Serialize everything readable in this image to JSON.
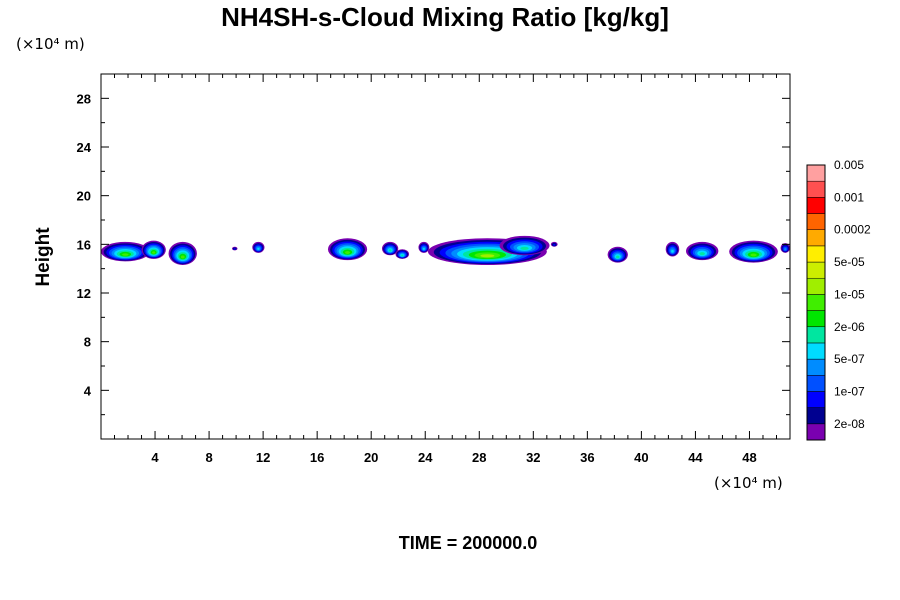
{
  "chart_data": {
    "type": "heatmap",
    "title": "NH4SH-s-Cloud Mixing Ratio [kg/kg]",
    "xlabel": "",
    "ylabel": "Height",
    "x_unit": "(×10⁴ m)",
    "y_unit": "(×10⁴ m)",
    "xlim": [
      0,
      51
    ],
    "ylim": [
      0,
      30
    ],
    "x_ticks": [
      4,
      8,
      12,
      16,
      20,
      24,
      28,
      32,
      36,
      40,
      44,
      48
    ],
    "y_ticks": [
      4,
      8,
      12,
      16,
      20,
      24,
      28
    ],
    "x_minor_step": 1,
    "y_minor_step": 2,
    "colorbar": {
      "colors": [
        "#7a00b0",
        "#000090",
        "#0000ff",
        "#0050ff",
        "#008cff",
        "#00dcff",
        "#00e6a0",
        "#00e600",
        "#40ee00",
        "#a0ee00",
        "#ccee00",
        "#ffee00",
        "#ffaa00",
        "#ff6400",
        "#ff0000",
        "#ff5050",
        "#ffa0a0"
      ],
      "labels": [
        "2e-08",
        "1e-07",
        "5e-07",
        "2e-06",
        "1e-05",
        "5e-05",
        "0.0002",
        "0.001",
        "0.005"
      ]
    },
    "cloud_blobs": [
      {
        "x0": 0.0,
        "x1": 3.6,
        "ybase": 14.6,
        "ytop": 16.2,
        "peak_level": 8
      },
      {
        "x0": 3.0,
        "x1": 4.8,
        "ybase": 14.8,
        "ytop": 16.3,
        "peak_level": 8
      },
      {
        "x0": 5.0,
        "x1": 7.1,
        "ybase": 14.3,
        "ytop": 16.2,
        "peak_level": 8
      },
      {
        "x0": 9.7,
        "x1": 10.1,
        "ybase": 15.5,
        "ytop": 15.8,
        "peak_level": 2
      },
      {
        "x0": 11.2,
        "x1": 12.1,
        "ybase": 15.3,
        "ytop": 16.2,
        "peak_level": 5
      },
      {
        "x0": 16.8,
        "x1": 19.7,
        "ybase": 14.7,
        "ytop": 16.5,
        "peak_level": 8
      },
      {
        "x0": 20.8,
        "x1": 22.0,
        "ybase": 15.1,
        "ytop": 16.2,
        "peak_level": 6
      },
      {
        "x0": 21.8,
        "x1": 22.8,
        "ybase": 14.8,
        "ytop": 15.6,
        "peak_level": 6
      },
      {
        "x0": 23.5,
        "x1": 24.3,
        "ybase": 15.3,
        "ytop": 16.2,
        "peak_level": 5
      },
      {
        "x0": 24.2,
        "x1": 33.0,
        "ybase": 14.3,
        "ytop": 16.5,
        "peak_level": 9
      },
      {
        "x0": 29.5,
        "x1": 33.2,
        "ybase": 15.1,
        "ytop": 16.7,
        "peak_level": 6
      },
      {
        "x0": 33.3,
        "x1": 33.8,
        "ybase": 15.8,
        "ytop": 16.2,
        "peak_level": 2
      },
      {
        "x0": 37.5,
        "x1": 39.0,
        "ybase": 14.5,
        "ytop": 15.8,
        "peak_level": 6
      },
      {
        "x0": 41.8,
        "x1": 42.8,
        "ybase": 15.0,
        "ytop": 16.2,
        "peak_level": 5
      },
      {
        "x0": 43.3,
        "x1": 45.7,
        "ybase": 14.7,
        "ytop": 16.2,
        "peak_level": 6
      },
      {
        "x0": 46.5,
        "x1": 50.1,
        "ybase": 14.5,
        "ytop": 16.3,
        "peak_level": 8
      },
      {
        "x0": 50.3,
        "x1": 51.0,
        "ybase": 15.3,
        "ytop": 16.1,
        "peak_level": 4
      }
    ],
    "annotation": "TIME = 200000.0"
  }
}
